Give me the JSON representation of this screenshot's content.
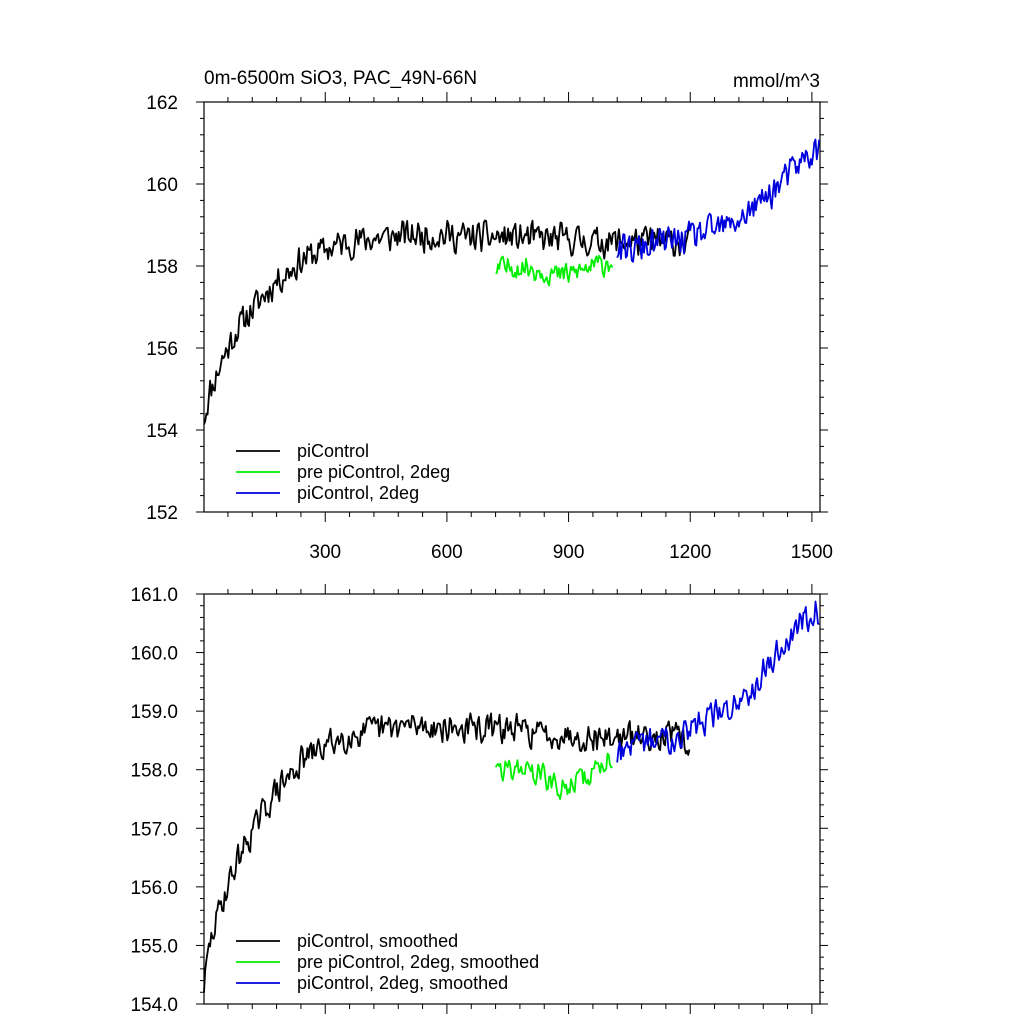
{
  "chart_data": [
    {
      "type": "line",
      "title": "0m-6500m SiO3, PAC_49N-66N",
      "units": "mmol/m^3",
      "xlim": [
        1,
        1520
      ],
      "ylim": [
        152,
        162
      ],
      "xticks": [
        300,
        600,
        900,
        1200,
        1500
      ],
      "yticks": [
        152,
        154,
        156,
        158,
        160,
        162
      ],
      "ytick_labels": [
        "152",
        "154",
        "156",
        "158",
        "160",
        "162"
      ],
      "legend_position": "bottom-left",
      "series": [
        {
          "name": "piControl",
          "color": "#000000",
          "points": [
            [
              1,
              154.3
            ],
            [
              15,
              154.9
            ],
            [
              30,
              155.3
            ],
            [
              45,
              155.7
            ],
            [
              60,
              156.0
            ],
            [
              80,
              156.4
            ],
            [
              100,
              156.7
            ],
            [
              125,
              157.0
            ],
            [
              150,
              157.3
            ],
            [
              175,
              157.6
            ],
            [
              200,
              157.8
            ],
            [
              225,
              158.0
            ],
            [
              250,
              158.2
            ],
            [
              275,
              158.3
            ],
            [
              300,
              158.4
            ],
            [
              325,
              158.5
            ],
            [
              350,
              158.55
            ],
            [
              375,
              158.6
            ],
            [
              400,
              158.65
            ],
            [
              450,
              158.7
            ],
            [
              500,
              158.75
            ],
            [
              550,
              158.75
            ],
            [
              600,
              158.75
            ],
            [
              650,
              158.7
            ],
            [
              700,
              158.7
            ],
            [
              750,
              158.7
            ],
            [
              800,
              158.7
            ],
            [
              850,
              158.65
            ],
            [
              900,
              158.65
            ],
            [
              950,
              158.6
            ],
            [
              1000,
              158.6
            ],
            [
              1050,
              158.6
            ],
            [
              1100,
              158.6
            ],
            [
              1150,
              158.6
            ],
            [
              1200,
              158.55
            ]
          ],
          "noise": 0.45
        },
        {
          "name": "pre piControl, 2deg",
          "color": "#00ee00",
          "points": [
            [
              720,
              157.9
            ],
            [
              760,
              158.0
            ],
            [
              800,
              157.95
            ],
            [
              850,
              157.85
            ],
            [
              880,
              157.75
            ],
            [
              900,
              157.8
            ],
            [
              950,
              157.95
            ],
            [
              1000,
              158.1
            ],
            [
              1010,
              158.15
            ]
          ],
          "noise": 0.35
        },
        {
          "name": "piControl, 2deg",
          "color": "#0000dd",
          "points": [
            [
              1020,
              158.3
            ],
            [
              1060,
              158.4
            ],
            [
              1100,
              158.5
            ],
            [
              1150,
              158.6
            ],
            [
              1200,
              158.7
            ],
            [
              1250,
              158.85
            ],
            [
              1300,
              159.0
            ],
            [
              1350,
              159.35
            ],
            [
              1400,
              159.8
            ],
            [
              1450,
              160.3
            ],
            [
              1480,
              160.6
            ],
            [
              1500,
              160.75
            ],
            [
              1520,
              160.8
            ]
          ],
          "noise": 0.45
        }
      ]
    },
    {
      "type": "line",
      "title": "",
      "xlim": [
        1,
        1520
      ],
      "ylim": [
        154,
        161
      ],
      "xticks": [
        300,
        600,
        900,
        1200,
        1500
      ],
      "yticks": [
        154,
        155,
        156,
        157,
        158,
        159,
        160,
        161
      ],
      "ytick_labels": [
        "154.0",
        "155.0",
        "156.0",
        "157.0",
        "158.0",
        "159.0",
        "160.0",
        "161.0"
      ],
      "legend_position": "bottom-left",
      "series": [
        {
          "name": "piControl, smoothed",
          "color": "#000000",
          "points": [
            [
              1,
              154.3
            ],
            [
              15,
              155.0
            ],
            [
              30,
              155.4
            ],
            [
              45,
              155.75
            ],
            [
              60,
              156.0
            ],
            [
              80,
              156.4
            ],
            [
              100,
              156.7
            ],
            [
              125,
              157.0
            ],
            [
              150,
              157.3
            ],
            [
              175,
              157.6
            ],
            [
              200,
              157.8
            ],
            [
              225,
              158.0
            ],
            [
              250,
              158.2
            ],
            [
              275,
              158.3
            ],
            [
              300,
              158.4
            ],
            [
              325,
              158.5
            ],
            [
              350,
              158.55
            ],
            [
              375,
              158.6
            ],
            [
              400,
              158.65
            ],
            [
              450,
              158.7
            ],
            [
              500,
              158.75
            ],
            [
              550,
              158.75
            ],
            [
              600,
              158.7
            ],
            [
              650,
              158.7
            ],
            [
              700,
              158.7
            ],
            [
              750,
              158.7
            ],
            [
              800,
              158.65
            ],
            [
              850,
              158.6
            ],
            [
              900,
              158.6
            ],
            [
              950,
              158.55
            ],
            [
              1000,
              158.55
            ],
            [
              1050,
              158.55
            ],
            [
              1100,
              158.6
            ],
            [
              1150,
              158.6
            ],
            [
              1200,
              158.45
            ]
          ],
          "noise": 0.3
        },
        {
          "name": "pre piControl, 2deg, smoothed",
          "color": "#00ee00",
          "points": [
            [
              720,
              157.9
            ],
            [
              760,
              158.05
            ],
            [
              800,
              158.0
            ],
            [
              850,
              157.85
            ],
            [
              880,
              157.6
            ],
            [
              900,
              157.75
            ],
            [
              950,
              157.9
            ],
            [
              1000,
              158.2
            ],
            [
              1010,
              158.25
            ]
          ],
          "noise": 0.25
        },
        {
          "name": "piControl, 2deg, smoothed",
          "color": "#0000dd",
          "points": [
            [
              1020,
              158.3
            ],
            [
              1060,
              158.35
            ],
            [
              1100,
              158.5
            ],
            [
              1150,
              158.55
            ],
            [
              1200,
              158.7
            ],
            [
              1250,
              158.9
            ],
            [
              1300,
              159.05
            ],
            [
              1350,
              159.4
            ],
            [
              1400,
              159.85
            ],
            [
              1450,
              160.3
            ],
            [
              1480,
              160.55
            ],
            [
              1500,
              160.75
            ],
            [
              1520,
              160.75
            ]
          ],
          "noise": 0.3
        }
      ]
    }
  ]
}
